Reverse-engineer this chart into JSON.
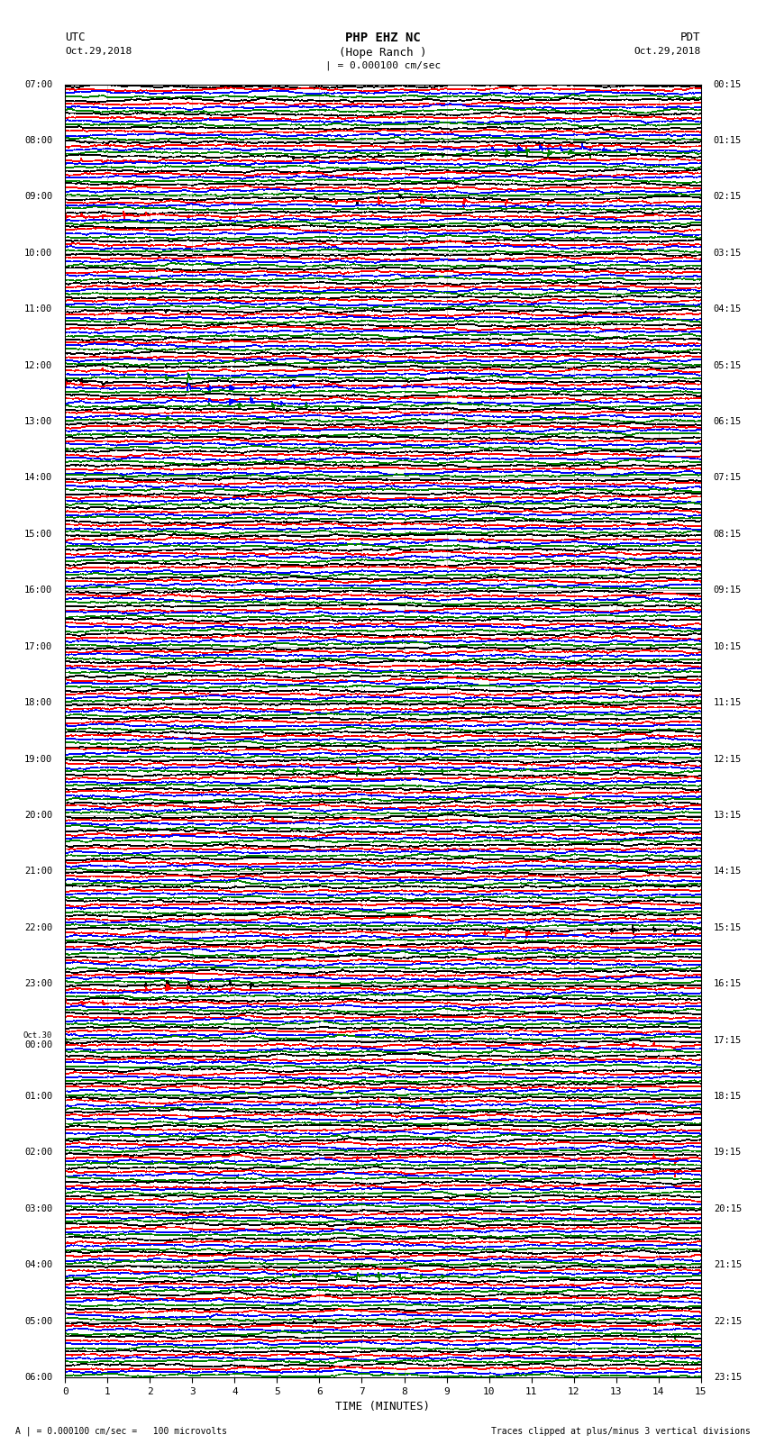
{
  "title_line1": "PHP EHZ NC",
  "title_line2": "(Hope Ranch )",
  "title_scale": "| = 0.000100 cm/sec",
  "utc_label": "UTC",
  "utc_date": "Oct.29,2018",
  "pdt_label": "PDT",
  "pdt_date": "Oct.29,2018",
  "xlabel": "TIME (MINUTES)",
  "footer_left": "A | = 0.000100 cm/sec =   100 microvolts",
  "footer_right": "Traces clipped at plus/minus 3 vertical divisions",
  "xlim": [
    0,
    15
  ],
  "xticks": [
    0,
    1,
    2,
    3,
    4,
    5,
    6,
    7,
    8,
    9,
    10,
    11,
    12,
    13,
    14,
    15
  ],
  "num_rows": 92,
  "trace_colors": [
    "black",
    "red",
    "blue",
    "green"
  ],
  "left_times_utc": [
    "07:00",
    "08:00",
    "09:00",
    "10:00",
    "11:00",
    "12:00",
    "13:00",
    "14:00",
    "15:00",
    "16:00",
    "17:00",
    "18:00",
    "19:00",
    "20:00",
    "21:00",
    "22:00",
    "23:00",
    "Oct.30\n00:00",
    "01:00",
    "02:00",
    "03:00",
    "04:00",
    "05:00",
    "06:00"
  ],
  "left_times_rows": [
    0,
    4,
    8,
    12,
    16,
    20,
    24,
    28,
    32,
    36,
    40,
    44,
    48,
    52,
    56,
    60,
    64,
    68,
    72,
    76,
    80,
    84,
    88,
    92
  ],
  "right_times_pdt": [
    "00:15",
    "01:15",
    "02:15",
    "03:15",
    "04:15",
    "05:15",
    "06:15",
    "07:15",
    "08:15",
    "09:15",
    "10:15",
    "11:15",
    "12:15",
    "13:15",
    "14:15",
    "15:15",
    "16:15",
    "17:15",
    "18:15",
    "19:15",
    "20:15",
    "21:15",
    "22:15",
    "23:15"
  ],
  "right_times_rows": [
    0,
    4,
    8,
    12,
    16,
    20,
    24,
    28,
    32,
    36,
    40,
    44,
    48,
    52,
    56,
    60,
    64,
    68,
    72,
    76,
    80,
    84,
    88,
    92
  ],
  "noise_seed": 42,
  "bg_color": "#ffffff",
  "trace_linewidth": 0.5,
  "fig_width": 8.5,
  "fig_height": 16.13,
  "events": [
    {
      "row": 4,
      "color_idx": 2,
      "positions": [
        9.5,
        10.2,
        10.8,
        11.3,
        11.8,
        12.3,
        12.8,
        13.2,
        13.6
      ],
      "amplitudes": [
        1.5,
        2.5,
        3.0,
        3.0,
        3.0,
        3.0,
        2.5,
        2.0,
        1.5
      ]
    },
    {
      "row": 4,
      "color_idx": 3,
      "positions": [
        9.0,
        9.8,
        10.5,
        11.0,
        11.5,
        12.0,
        12.5
      ],
      "amplitudes": [
        1.5,
        2.5,
        3.0,
        3.0,
        3.0,
        3.0,
        2.0
      ]
    },
    {
      "row": 5,
      "color_idx": 1,
      "positions": [
        0.5,
        1.0,
        1.5,
        2.0
      ],
      "amplitudes": [
        2.0,
        2.5,
        2.0,
        1.5
      ]
    },
    {
      "row": 4,
      "color_idx": 1,
      "positions": [
        11.0,
        11.5,
        12.0,
        12.5,
        13.0
      ],
      "amplitudes": [
        1.2,
        2.0,
        2.5,
        2.0,
        1.5
      ]
    },
    {
      "row": 5,
      "color_idx": 0,
      "positions": [
        5.5,
        6.0,
        7.5,
        8.5
      ],
      "amplitudes": [
        0.8,
        1.2,
        2.0,
        0.8
      ]
    },
    {
      "row": 8,
      "color_idx": 0,
      "positions": [
        5.5,
        6.0,
        7.0,
        8.0,
        8.8,
        10.0,
        11.5,
        12.0
      ],
      "amplitudes": [
        1.0,
        2.0,
        2.5,
        2.0,
        1.5,
        1.2,
        0.8,
        0.5
      ]
    },
    {
      "row": 8,
      "color_idx": 1,
      "positions": [
        6.5,
        7.5,
        8.5,
        9.5,
        10.5,
        11.5
      ],
      "amplitudes": [
        2.0,
        3.0,
        3.0,
        3.0,
        2.5,
        2.0
      ]
    },
    {
      "row": 9,
      "color_idx": 1,
      "positions": [
        0.0,
        0.5,
        1.0,
        1.5,
        2.0,
        3.0,
        4.0
      ],
      "amplitudes": [
        2.5,
        3.0,
        3.0,
        3.0,
        2.5,
        2.0,
        1.5
      ]
    },
    {
      "row": 20,
      "color_idx": 0,
      "positions": [
        1.5,
        2.5
      ],
      "amplitudes": [
        0.8,
        0.6
      ]
    },
    {
      "row": 20,
      "color_idx": 3,
      "positions": [
        1.5,
        2.0,
        2.5,
        3.0
      ],
      "amplitudes": [
        1.0,
        1.5,
        2.5,
        3.0
      ]
    },
    {
      "row": 21,
      "color_idx": 0,
      "positions": [
        0.0,
        0.5,
        1.0
      ],
      "amplitudes": [
        3.0,
        3.0,
        2.5
      ]
    },
    {
      "row": 21,
      "color_idx": 1,
      "positions": [
        0.0,
        0.5,
        3.5,
        4.5
      ],
      "amplitudes": [
        2.5,
        2.0,
        1.5,
        1.2
      ]
    },
    {
      "row": 21,
      "color_idx": 2,
      "positions": [
        3.0,
        3.5,
        4.0,
        4.8,
        5.5
      ],
      "amplitudes": [
        3.0,
        3.0,
        3.0,
        2.5,
        2.0
      ]
    },
    {
      "row": 22,
      "color_idx": 2,
      "positions": [
        3.5,
        4.0,
        4.5,
        5.2
      ],
      "amplitudes": [
        2.5,
        3.0,
        2.5,
        2.0
      ]
    },
    {
      "row": 22,
      "color_idx": 3,
      "positions": [
        3.0,
        3.5,
        4.2,
        5.0,
        5.8,
        6.5,
        7.2
      ],
      "amplitudes": [
        1.5,
        2.0,
        2.5,
        2.0,
        1.5,
        1.2,
        1.0
      ]
    },
    {
      "row": 23,
      "color_idx": 3,
      "positions": [
        2.0,
        2.5,
        3.0,
        3.5
      ],
      "amplitudes": [
        1.5,
        2.0,
        1.5,
        1.2
      ]
    },
    {
      "row": 24,
      "color_idx": 3,
      "positions": [
        1.0,
        1.5,
        2.0
      ],
      "amplitudes": [
        1.0,
        1.5,
        1.2
      ]
    },
    {
      "row": 48,
      "color_idx": 3,
      "positions": [
        5.0,
        5.5,
        6.0,
        7.0,
        8.0,
        8.5,
        9.0
      ],
      "amplitudes": [
        1.5,
        2.5,
        3.0,
        3.0,
        2.5,
        2.0,
        1.5
      ]
    },
    {
      "row": 60,
      "color_idx": 0,
      "positions": [
        13.0,
        13.5,
        14.0,
        14.5
      ],
      "amplitudes": [
        2.5,
        3.0,
        2.5,
        2.0
      ]
    },
    {
      "row": 60,
      "color_idx": 1,
      "positions": [
        9.5,
        10.0,
        10.5,
        11.0,
        11.5
      ],
      "amplitudes": [
        1.5,
        2.5,
        3.0,
        2.5,
        2.0
      ]
    },
    {
      "row": 64,
      "color_idx": 0,
      "positions": [
        2.0,
        2.5,
        3.0,
        3.5,
        4.0,
        4.5,
        5.0
      ],
      "amplitudes": [
        2.0,
        3.0,
        3.0,
        3.0,
        2.5,
        2.0,
        1.5
      ]
    },
    {
      "row": 64,
      "color_idx": 1,
      "positions": [
        1.5,
        2.0,
        2.5,
        3.0,
        3.5,
        4.0
      ],
      "amplitudes": [
        1.5,
        2.5,
        3.0,
        2.5,
        2.0,
        1.5
      ]
    },
    {
      "row": 65,
      "color_idx": 1,
      "positions": [
        0.0,
        0.5,
        1.0,
        1.5
      ],
      "amplitudes": [
        2.0,
        2.5,
        2.0,
        1.5
      ]
    },
    {
      "row": 68,
      "color_idx": 1,
      "positions": [
        13.5,
        14.0,
        14.5
      ],
      "amplitudes": [
        1.5,
        2.0,
        1.5
      ]
    },
    {
      "row": 72,
      "color_idx": 1,
      "positions": [
        7.0,
        7.5,
        8.0,
        8.5,
        9.0
      ],
      "amplitudes": [
        1.5,
        2.5,
        2.5,
        2.0,
        1.5
      ]
    },
    {
      "row": 76,
      "color_idx": 1,
      "positions": [
        7.0,
        7.5,
        8.0,
        8.5
      ],
      "amplitudes": [
        1.5,
        2.0,
        1.5,
        1.2
      ]
    },
    {
      "row": 76,
      "color_idx": 1,
      "positions": [
        14.0,
        14.5
      ],
      "amplitudes": [
        2.0,
        2.5
      ]
    },
    {
      "row": 77,
      "color_idx": 1,
      "positions": [
        14.0,
        14.5
      ],
      "amplitudes": [
        2.5,
        2.0
      ]
    },
    {
      "row": 84,
      "color_idx": 3,
      "positions": [
        5.5,
        6.0,
        6.5,
        7.0,
        7.5,
        8.0,
        8.5,
        9.0
      ],
      "amplitudes": [
        2.0,
        3.0,
        3.0,
        3.0,
        3.0,
        2.5,
        2.0,
        1.5
      ]
    },
    {
      "row": 88,
      "color_idx": 0,
      "positions": [
        5.5,
        6.0
      ],
      "amplitudes": [
        1.5,
        2.0
      ]
    },
    {
      "row": 88,
      "color_idx": 3,
      "positions": [
        14.0,
        14.5
      ],
      "amplitudes": [
        1.5,
        2.0
      ]
    },
    {
      "row": 20,
      "color_idx": 1,
      "positions": [
        1.0,
        1.5,
        2.0
      ],
      "amplitudes": [
        0.8,
        1.2,
        0.8
      ]
    },
    {
      "row": 16,
      "color_idx": 0,
      "positions": [
        2.0,
        2.5,
        3.0
      ],
      "amplitudes": [
        0.8,
        1.2,
        1.0
      ]
    },
    {
      "row": 52,
      "color_idx": 1,
      "positions": [
        4.5,
        5.0
      ],
      "amplitudes": [
        1.5,
        2.0
      ]
    },
    {
      "row": 56,
      "color_idx": 2,
      "positions": [
        7.5,
        8.0,
        8.5
      ],
      "amplitudes": [
        1.0,
        1.5,
        1.2
      ]
    }
  ]
}
